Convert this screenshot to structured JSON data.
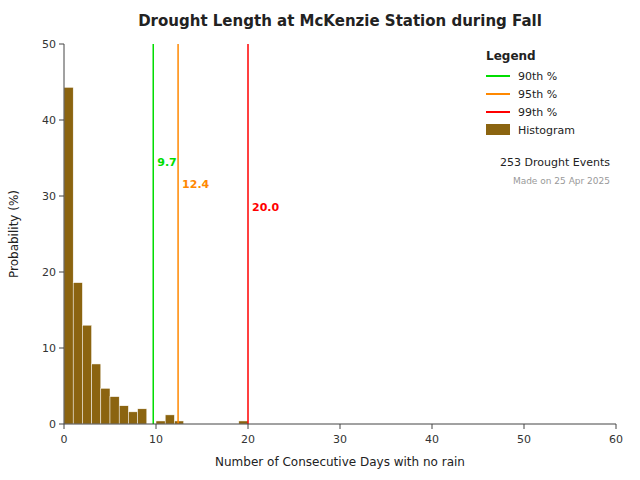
{
  "chart_data": {
    "type": "histogram",
    "title": "Drought Length at McKenzie Station during Fall",
    "x_label": "Number of Consecutive Days with no rain",
    "y_label": "Probability (%)",
    "bins": [
      0,
      1,
      2,
      3,
      4,
      5,
      6,
      7,
      8,
      9,
      10,
      11,
      12,
      13,
      14,
      15,
      16,
      17,
      18,
      19,
      20,
      21,
      22,
      23,
      24,
      25,
      26,
      27,
      28,
      29,
      30,
      31,
      32,
      33,
      34,
      35,
      36,
      37,
      38,
      39,
      40,
      41,
      42,
      43,
      44,
      45,
      46,
      47,
      48,
      49,
      50,
      51,
      52,
      53,
      54,
      55,
      56,
      57,
      58,
      59,
      60
    ],
    "series": [
      {
        "name": "Histogram",
        "color": "#8B6410",
        "values": [
          44.3,
          18.6,
          13.0,
          7.9,
          4.7,
          3.6,
          2.4,
          1.6,
          2.0,
          0.0,
          0.4,
          1.2,
          0.4,
          0.0,
          0.0,
          0.0,
          0.0,
          0.0,
          0.0,
          0.4,
          0.0,
          0.0,
          0.0,
          0.0,
          0.0,
          0.0,
          0.0,
          0.0,
          0.0,
          0.0,
          0.0,
          0.0,
          0.0,
          0.0,
          0.0,
          0.0,
          0.0,
          0.0,
          0.0,
          0.0,
          0.0,
          0.0,
          0.0,
          0.0,
          0.0,
          0.0,
          0.0,
          0.0,
          0.0,
          0.0,
          0.0,
          0.0,
          0.0,
          0.0,
          0.0,
          0.0,
          0.0,
          0.0,
          0.0,
          0.0
        ]
      }
    ],
    "reference_lines": [
      {
        "name": "90th %",
        "value": 9.7,
        "label": "9.7",
        "color": "#00dd00"
      },
      {
        "name": "95th %",
        "value": 12.4,
        "label": "12.4",
        "color": "#ff8800"
      },
      {
        "name": "99th %",
        "value": 20.0,
        "label": "20.0",
        "color": "#ff0000"
      }
    ],
    "legend_title": "Legend",
    "annotations": [
      "253 Drought Events",
      "Made on 25 Apr 2025"
    ],
    "xlim": [
      0,
      60
    ],
    "ylim": [
      0,
      50
    ],
    "xticks": [
      0,
      10,
      20,
      30,
      40,
      50,
      60
    ],
    "yticks": [
      0,
      10,
      20,
      30,
      40,
      50
    ],
    "grid": false,
    "legend": "upper right"
  }
}
